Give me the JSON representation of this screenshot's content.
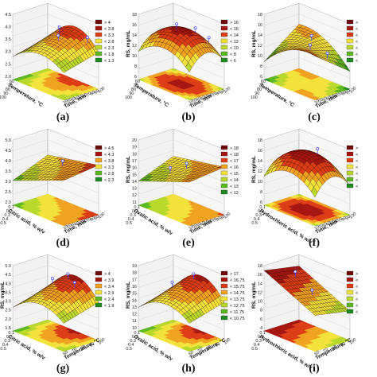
{
  "chart_data": [
    {
      "type": "surface",
      "caption": "(a)",
      "zlabel": "",
      "xlabel": "Temperature, °C",
      "ylabel": "Time, min",
      "zticks": [
        "4.5",
        "4.0",
        "3.5",
        "3.0",
        "2.5",
        "2.0"
      ],
      "zlim": [
        2.0,
        4.5
      ],
      "xticks": [
        "60",
        "70",
        "80",
        "90",
        "100"
      ],
      "yticks": [
        "10",
        "20",
        "30",
        "40",
        "50",
        "60",
        "70",
        "80",
        "90",
        "100"
      ],
      "legend": [
        "> 4",
        "< 3.8",
        "< 3.3",
        "< 2.8",
        "< 2.3",
        "< 1.8",
        "< 1.3"
      ],
      "shape": "dome-x",
      "peak": 0.75,
      "points": [
        [
          0.4,
          0.75
        ],
        [
          0.85,
          0.9
        ],
        [
          0.55,
          0.5
        ]
      ]
    },
    {
      "type": "surface",
      "caption": "(b)",
      "zlabel": "RS, mg/mL",
      "xlabel": "Temperature, °C",
      "ylabel": "Time, min",
      "zticks": [
        "18",
        "16",
        "14",
        "12",
        "10",
        "8",
        "6"
      ],
      "zlim": [
        6,
        18
      ],
      "xticks": [
        "60",
        "70",
        "80",
        "90",
        "100"
      ],
      "yticks": [
        "10",
        "20",
        "30",
        "40",
        "50",
        "60",
        "70",
        "80",
        "90",
        "100"
      ],
      "legend": [
        "> 16",
        "< 16",
        "< 14",
        "< 12",
        "< 10",
        "< 8",
        "< 6"
      ],
      "shape": "dome",
      "peak": 0.8,
      "points": [
        [
          0.5,
          0.9
        ],
        [
          0.2,
          0.8
        ],
        [
          0.8,
          0.85
        ]
      ]
    },
    {
      "type": "surface",
      "caption": "(c)",
      "zlabel": "RS, mg/mL",
      "xlabel": "Temperature, °C",
      "ylabel": "Time, min",
      "zticks": [
        "18",
        "16",
        "14",
        "12",
        "10",
        "8",
        "6"
      ],
      "zlim": [
        6,
        18
      ],
      "xticks": [
        "60",
        "70",
        "80",
        "90",
        "100"
      ],
      "yticks": [
        "10",
        "20",
        "30",
        "40",
        "50",
        "60",
        "70",
        "80",
        "90",
        "100"
      ],
      "legend": [
        ">",
        "<",
        "<",
        "<",
        "<",
        "<",
        "<"
      ],
      "shape": "saddle",
      "peak": 0.6,
      "points": [
        [
          0.45,
          0.7
        ],
        [
          0.7,
          0.3
        ],
        [
          0.9,
          0.5
        ]
      ]
    },
    {
      "type": "surface",
      "caption": "(d)",
      "zlabel": "",
      "xlabel": "Citric acid, % w/v",
      "ylabel": "Time, min",
      "zticks": [
        "5.0",
        "4.5",
        "4.0",
        "3.5",
        "3.0",
        "2.5",
        "2.0"
      ],
      "zlim": [
        2.0,
        5.0
      ],
      "xticks": [
        "0.1",
        "0.2",
        "0.3",
        "0.4",
        "0.5"
      ],
      "yticks": [
        "10",
        "20",
        "30",
        "40",
        "50",
        "60",
        "70",
        "80",
        "90",
        "100"
      ],
      "legend": [
        "> 4.5",
        "< 4.3",
        "< 3.8",
        "< 3.3",
        "< 2.8",
        "< 2.3"
      ],
      "shape": "ramp",
      "peak": 0.85,
      "points": [
        [
          0.5,
          0.7
        ]
      ]
    },
    {
      "type": "surface",
      "caption": "(e)",
      "zlabel": "RS, mg/mL",
      "xlabel": "Oxalic acid, % w/v",
      "ylabel": "Time, min",
      "zticks": [
        "20",
        "19",
        "18",
        "17",
        "16",
        "15",
        "14",
        "13",
        "12",
        "11"
      ],
      "zlim": [
        11,
        20
      ],
      "xticks": [
        "0.1",
        "0.2",
        "0.3",
        "0.4",
        "0.5"
      ],
      "yticks": [
        "10",
        "20",
        "30",
        "40",
        "50",
        "60",
        "70",
        "80",
        "90",
        "100"
      ],
      "legend": [
        "> 18",
        "< 18",
        "< 17",
        "< 16",
        "< 15",
        "< 14",
        "< 13",
        "< 12"
      ],
      "shape": "ramp",
      "peak": 0.8,
      "points": [
        [
          0.5,
          0.65
        ],
        [
          0.35,
          0.4
        ]
      ]
    },
    {
      "type": "surface",
      "caption": "(f)",
      "zlabel": "RS, mg/mL",
      "xlabel": "Hydrochloric acid, % w/v",
      "ylabel": "Time, min",
      "zticks": [
        "18",
        "16",
        "14",
        "12",
        "10",
        "8",
        "6"
      ],
      "zlim": [
        6,
        18
      ],
      "xticks": [
        "0.1",
        "0.2",
        "0.3",
        "0.4",
        "0.5"
      ],
      "yticks": [
        "10",
        "20",
        "30",
        "40",
        "50",
        "60",
        "70",
        "80",
        "90",
        "100"
      ],
      "legend": [
        ">",
        "<",
        "<",
        "<",
        "<",
        "<",
        "<"
      ],
      "shape": "dome",
      "peak": 0.85,
      "points": [
        [
          0.5,
          0.8
        ]
      ]
    },
    {
      "type": "surface",
      "caption": "(g)",
      "zlabel": "RS, mg/mL",
      "xlabel": "Citric acid, % w/v",
      "ylabel": "Temperature, °C",
      "zticks": [
        "5.0",
        "4.5",
        "4.0",
        "3.5",
        "3.0",
        "2.5",
        "2.0",
        "1.5"
      ],
      "zlim": [
        1.5,
        5.0
      ],
      "xticks": [
        "0.1",
        "0.2",
        "0.3",
        "0.4",
        "0.5"
      ],
      "yticks": [
        "60",
        "70",
        "80",
        "90",
        "100"
      ],
      "legend": [
        "> 4",
        "< 3.9",
        "< 3.4",
        "< 2.9",
        "< 2.4",
        "< 1.9"
      ],
      "shape": "dome-x",
      "peak": 0.8,
      "points": [
        [
          0.5,
          0.85
        ],
        [
          0.3,
          0.7
        ],
        [
          0.7,
          0.75
        ]
      ]
    },
    {
      "type": "surface",
      "caption": "(h)",
      "zlabel": "RS, mg/mL",
      "xlabel": "Oxalic acid, % w/v",
      "ylabel": "Temperature, °C",
      "zticks": [
        "19",
        "18",
        "17",
        "16",
        "15",
        "14",
        "13",
        "12",
        "11",
        "10"
      ],
      "zlim": [
        10,
        19
      ],
      "xticks": [
        "0.1",
        "0.2",
        "0.3",
        "0.4",
        "0.5"
      ],
      "yticks": [
        "60",
        "70",
        "80",
        "90",
        "100"
      ],
      "legend": [
        "> 17",
        "< 16.75",
        "< 15.75",
        "< 14.75",
        "< 13.75",
        "< 12.75",
        "< 11.75",
        "< 10.75"
      ],
      "shape": "dome-x",
      "peak": 0.8,
      "points": [
        [
          0.5,
          0.85
        ],
        [
          0.25,
          0.6
        ]
      ]
    },
    {
      "type": "surface",
      "caption": "(i)",
      "zlabel": "RS, mg/mL",
      "xlabel": "Hydrochloric acid, % w/v",
      "ylabel": "Temperature, °C",
      "zticks": [
        "18",
        "16",
        "14",
        "12",
        "10",
        "8",
        "6",
        "4"
      ],
      "zlim": [
        4,
        18
      ],
      "xticks": [
        "0.1",
        "0.2",
        "0.3",
        "0.4",
        "0.5"
      ],
      "yticks": [
        "60",
        "70",
        "80",
        "90",
        "100"
      ],
      "legend": [
        ">",
        "<",
        "<",
        "<",
        "<",
        "<",
        "<"
      ],
      "shape": "sheet",
      "peak": 0.9,
      "points": [
        [
          0.2,
          0.6
        ],
        [
          0.6,
          0.5
        ]
      ]
    }
  ],
  "colors": {
    "ramp": [
      "#1f8a1f",
      "#5cb81f",
      "#b8d82a",
      "#f2e23a",
      "#f0a21f",
      "#dc3b14",
      "#a5140f",
      "#6e0a08"
    ],
    "mesh": "#2a0000",
    "point": "#3a3aff"
  }
}
